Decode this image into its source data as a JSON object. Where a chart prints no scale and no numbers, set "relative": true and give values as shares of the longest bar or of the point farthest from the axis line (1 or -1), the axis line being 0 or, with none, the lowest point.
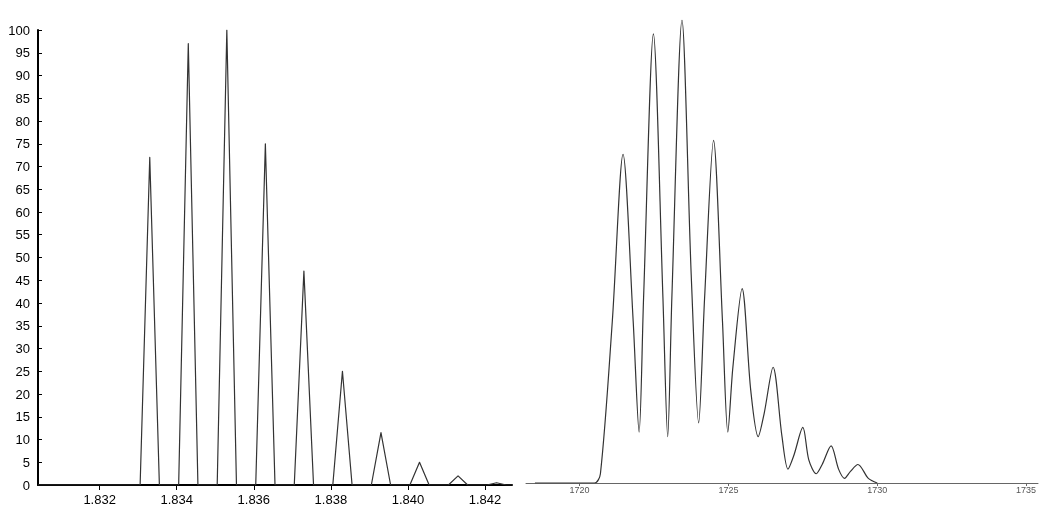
{
  "chart_data": [
    {
      "type": "line",
      "xlim": [
        1.8304,
        1.8427
      ],
      "xticks": [
        {
          "value": 1.832,
          "label": "1.832"
        },
        {
          "value": 1.834,
          "label": "1.834"
        },
        {
          "value": 1.836,
          "label": "1.836"
        },
        {
          "value": 1.838,
          "label": "1.838"
        },
        {
          "value": 1.84,
          "label": "1.840"
        },
        {
          "value": 1.842,
          "label": "1.842"
        }
      ],
      "ylim": [
        0,
        100
      ],
      "yticks": [
        0,
        5,
        10,
        15,
        20,
        25,
        30,
        35,
        40,
        45,
        50,
        55,
        60,
        65,
        70,
        75,
        80,
        85,
        90,
        95,
        100
      ],
      "grid": false,
      "marker": "none",
      "line_style": "solid",
      "series": [
        {
          "color": "#333333",
          "x": [
            1.8304,
            1.83305,
            1.8333,
            1.83355,
            1.83405,
            1.8343,
            1.83455,
            1.83505,
            1.8353,
            1.83555,
            1.83605,
            1.8363,
            1.83655,
            1.83705,
            1.8373,
            1.83755,
            1.83805,
            1.8383,
            1.83855,
            1.83905,
            1.8393,
            1.83955,
            1.84005,
            1.8403,
            1.84055,
            1.84105,
            1.8413,
            1.84155,
            1.84205,
            1.8423,
            1.84255,
            1.8427
          ],
          "values": [
            0,
            0,
            72,
            0,
            0,
            97,
            0,
            0,
            100,
            0,
            0,
            75,
            0,
            0,
            47,
            0,
            0,
            25,
            0,
            0,
            11.5,
            0,
            0,
            5,
            0,
            0,
            2,
            0,
            0,
            0.5,
            0,
            0
          ]
        }
      ]
    },
    {
      "type": "line",
      "relative": true,
      "xlim": [
        1718.2,
        1735.4
      ],
      "xticks": [
        1720,
        1725,
        1730,
        1735
      ],
      "grid": false,
      "marker": "none",
      "line_style": "solid",
      "series": [
        {
          "color": "#333333",
          "x": [
            1718.5,
            1720.5,
            1720.7,
            1721.1,
            1721.46,
            1721.8,
            1722.0,
            1722.15,
            1722.48,
            1722.8,
            1722.96,
            1723.1,
            1723.44,
            1723.75,
            1724.0,
            1724.2,
            1724.5,
            1724.8,
            1724.98,
            1725.15,
            1725.46,
            1725.75,
            1726.0,
            1726.2,
            1726.5,
            1726.8,
            1727.0,
            1727.2,
            1727.5,
            1727.7,
            1727.95,
            1728.15,
            1728.45,
            1728.7,
            1728.9,
            1729.1,
            1729.35,
            1729.7,
            1730.0
          ],
          "values": [
            0,
            0,
            0.02,
            0.35,
            0.71,
            0.35,
            0.11,
            0.4,
            0.97,
            0.4,
            0.1,
            0.4,
            1,
            0.45,
            0.13,
            0.4,
            0.74,
            0.35,
            0.11,
            0.25,
            0.42,
            0.2,
            0.1,
            0.15,
            0.25,
            0.1,
            0.03,
            0.06,
            0.12,
            0.05,
            0.02,
            0.04,
            0.08,
            0.03,
            0.01,
            0.025,
            0.04,
            0.01,
            0
          ]
        }
      ]
    }
  ]
}
